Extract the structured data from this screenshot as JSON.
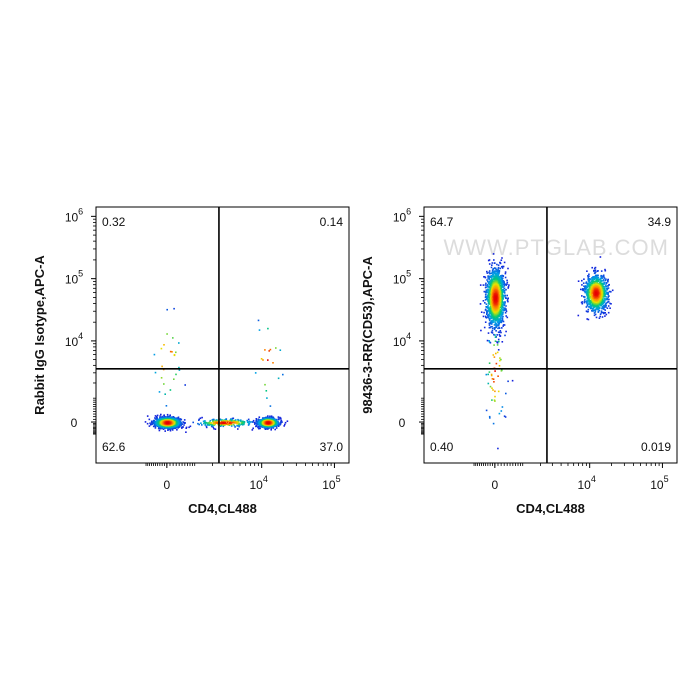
{
  "chart_data": [
    {
      "type": "scatter",
      "xlabel": "CD4,CL488",
      "ylabel": "Rabbit IgG Isotype,APC-A",
      "x_ticks": [
        {
          "value": 0,
          "base": "0",
          "exp": ""
        },
        {
          "value": 10000,
          "base": "10",
          "exp": "4"
        },
        {
          "value": 100000,
          "base": "10",
          "exp": "5"
        }
      ],
      "y_ticks": [
        {
          "value": 0,
          "base": "0",
          "exp": ""
        },
        {
          "value": 10000,
          "base": "10",
          "exp": "4"
        },
        {
          "value": 100000,
          "base": "10",
          "exp": "5"
        },
        {
          "value": 1000000,
          "base": "10",
          "exp": "6"
        }
      ],
      "quadrants": {
        "top_left": "0.32",
        "top_right": "0.14",
        "bottom_left": "62.6",
        "bottom_right": "37.0"
      },
      "gate": {
        "x": 2500,
        "y": 3500
      },
      "populations": [
        {
          "x": 0,
          "y": 0,
          "n": 1500,
          "sx": 0.25,
          "sy": 0.1
        },
        {
          "x": 12000,
          "y": 0,
          "n": 1100,
          "sx": 0.2,
          "sy": 0.09
        },
        {
          "x": 3000,
          "y": 0,
          "n": 250,
          "sx": 0.55,
          "sy": 0.07
        },
        {
          "x": 0,
          "y": 5000,
          "n": 30,
          "sx": 0.3,
          "sy": 0.9
        },
        {
          "x": 12000,
          "y": 5000,
          "n": 20,
          "sx": 0.3,
          "sy": 0.9
        }
      ]
    },
    {
      "type": "scatter",
      "xlabel": "CD4,CL488",
      "ylabel": "98436-3-RR(CD53),APC-A",
      "watermark": "WWW.PTGLAB.COM",
      "x_ticks": [
        {
          "value": 0,
          "base": "0",
          "exp": ""
        },
        {
          "value": 10000,
          "base": "10",
          "exp": "4"
        },
        {
          "value": 100000,
          "base": "10",
          "exp": "5"
        }
      ],
      "y_ticks": [
        {
          "value": 0,
          "base": "0",
          "exp": ""
        },
        {
          "value": 10000,
          "base": "10",
          "exp": "4"
        },
        {
          "value": 100000,
          "base": "10",
          "exp": "5"
        },
        {
          "value": 1000000,
          "base": "10",
          "exp": "6"
        }
      ],
      "quadrants": {
        "top_left": "64.7",
        "top_right": "34.9",
        "bottom_left": "0.40",
        "bottom_right": "0.019"
      },
      "gate": {
        "x": 2500,
        "y": 3500
      },
      "populations": [
        {
          "x": 0,
          "y": 50000,
          "n": 1600,
          "sx": 0.18,
          "sy": 0.55
        },
        {
          "x": 12000,
          "y": 60000,
          "n": 1100,
          "sx": 0.22,
          "sy": 0.35
        },
        {
          "x": 0,
          "y": 3000,
          "n": 60,
          "sx": 0.2,
          "sy": 1.0
        }
      ]
    }
  ]
}
